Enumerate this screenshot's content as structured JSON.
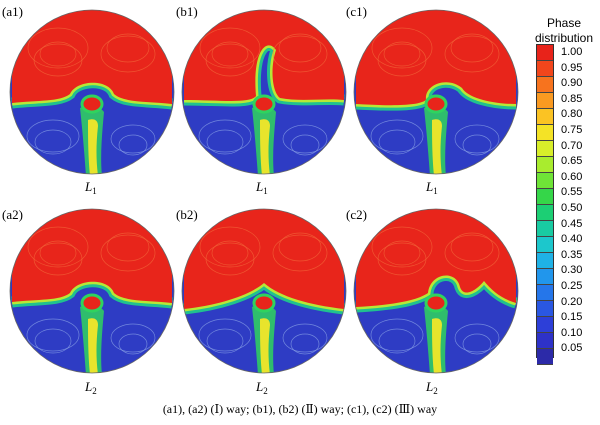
{
  "panels": [
    {
      "id": "a1",
      "label": "(a1)",
      "lower_label": "L",
      "lower_sub": "1",
      "interface": "dome"
    },
    {
      "id": "b1",
      "label": "(b1)",
      "lower_label": "L",
      "lower_sub": "1",
      "interface": "plume"
    },
    {
      "id": "c1",
      "label": "(c1)",
      "lower_label": "L",
      "lower_sub": "1",
      "interface": "plume-low"
    },
    {
      "id": "a2",
      "label": "(a2)",
      "lower_label": "L",
      "lower_sub": "2",
      "interface": "dome"
    },
    {
      "id": "b2",
      "label": "(b2)",
      "lower_label": "L",
      "lower_sub": "2",
      "interface": "arch"
    },
    {
      "id": "c2",
      "label": "(c2)",
      "lower_label": "L",
      "lower_sub": "2",
      "interface": "slant"
    }
  ],
  "colorbar": {
    "title_line1": "Phase",
    "title_line2": "distribution",
    "ticks": [
      "1.00",
      "0.95",
      "0.90",
      "0.85",
      "0.80",
      "0.75",
      "0.70",
      "0.65",
      "0.60",
      "0.55",
      "0.50",
      "0.45",
      "0.40",
      "0.35",
      "0.30",
      "0.25",
      "0.20",
      "0.15",
      "0.10",
      "0.05"
    ],
    "colors": [
      "#e8231a",
      "#f2461c",
      "#f7731e",
      "#fa9a21",
      "#fbc323",
      "#f4e326",
      "#d8ee2a",
      "#a9ec2e",
      "#6fe437",
      "#35d649",
      "#1ccf74",
      "#19cba2",
      "#1cc7cc",
      "#1fb2e6",
      "#2196ec",
      "#2576ea",
      "#2a57e2",
      "#2d3fd8",
      "#2e32c8",
      "#2c2aa8"
    ]
  },
  "caption": "(a1), (a2) (Ⅰ) way; (b1), (b2) (Ⅱ) way; (c1), (c2) (Ⅲ) way"
}
